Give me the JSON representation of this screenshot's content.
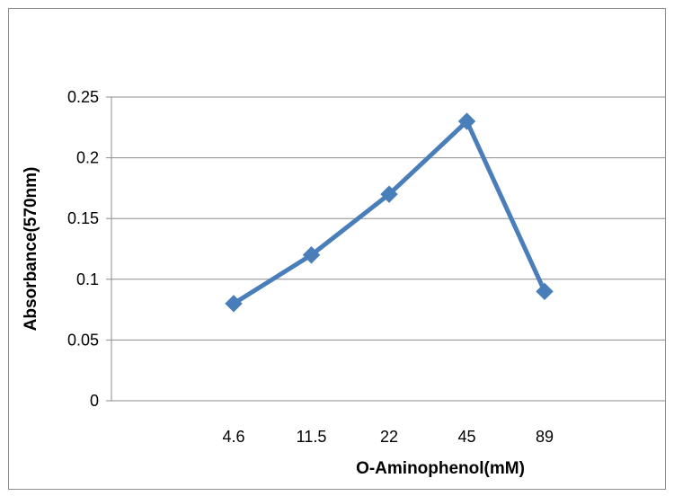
{
  "chart_data": {
    "type": "line",
    "title": "",
    "xlabel": "O-Aminophenol(mM)",
    "ylabel": "Absorbance(570nm)",
    "categories": [
      "4.6",
      "11.5",
      "22",
      "45",
      "89"
    ],
    "series": [
      {
        "values": [
          0.08,
          0.12,
          0.17,
          0.23,
          0.09
        ],
        "color": "#4a7ebb",
        "marker": "diamond"
      }
    ],
    "y_ticks": [
      "0",
      "0.05",
      "0.1",
      "0.15",
      "0.2",
      "0.25"
    ],
    "ylim": [
      0,
      0.25
    ],
    "grid": "horizontal",
    "legend": "none"
  }
}
